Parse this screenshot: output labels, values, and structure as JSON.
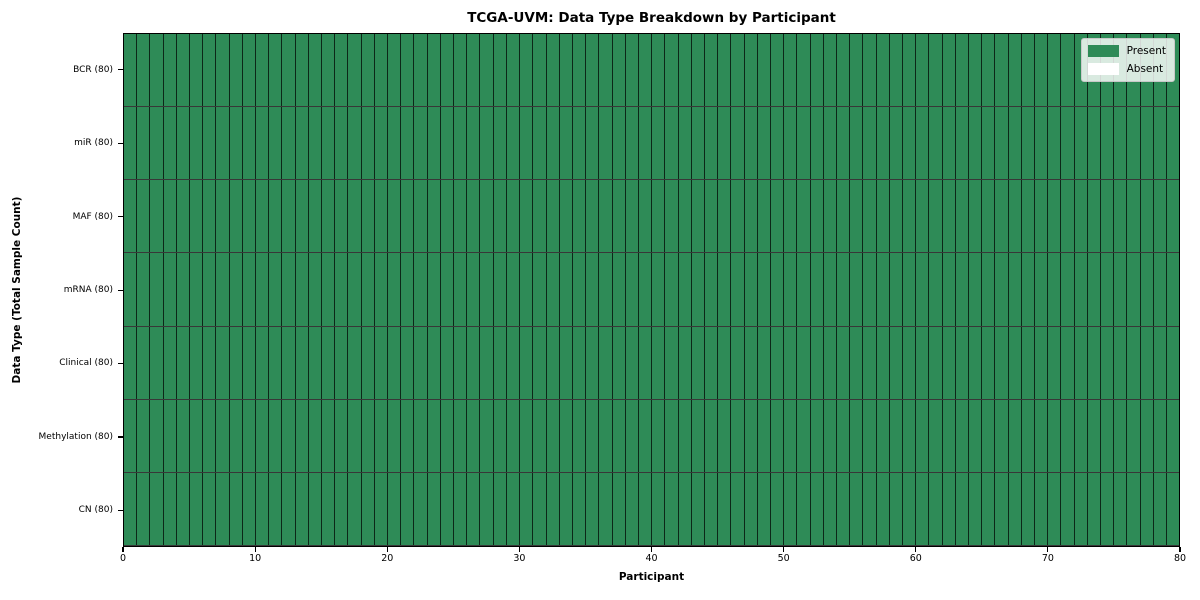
{
  "figure": {
    "background": "#ffffff"
  },
  "chart_data": {
    "type": "heatmap",
    "title": "TCGA-UVM: Data Type Breakdown by Participant",
    "xlabel": "Participant",
    "ylabel": "Data Type (Total Sample Count)",
    "xlim": [
      0,
      80
    ],
    "x_ticks": [
      0,
      10,
      20,
      30,
      40,
      50,
      60,
      70,
      80
    ],
    "n_participants": 80,
    "rows": [
      {
        "label": "BCR (80)",
        "present_count": 80,
        "total": 80
      },
      {
        "label": "miR (80)",
        "present_count": 80,
        "total": 80
      },
      {
        "label": "MAF (80)",
        "present_count": 80,
        "total": 80
      },
      {
        "label": "mRNA (80)",
        "present_count": 80,
        "total": 80
      },
      {
        "label": "Clinical (80)",
        "present_count": 80,
        "total": 80
      },
      {
        "label": "Methylation (80)",
        "present_count": 80,
        "total": 80
      },
      {
        "label": "CN (80)",
        "present_count": 80,
        "total": 80
      }
    ],
    "legend": {
      "position": "upper right",
      "entries": [
        {
          "label": "Present",
          "color": "#2e8b57"
        },
        {
          "label": "Absent",
          "color": "#ffffff"
        }
      ]
    },
    "colors": {
      "present": "#2e8b57",
      "absent": "#ffffff",
      "cell_border": "#000000",
      "spine": "#000000"
    },
    "grid": "cell-borders"
  }
}
